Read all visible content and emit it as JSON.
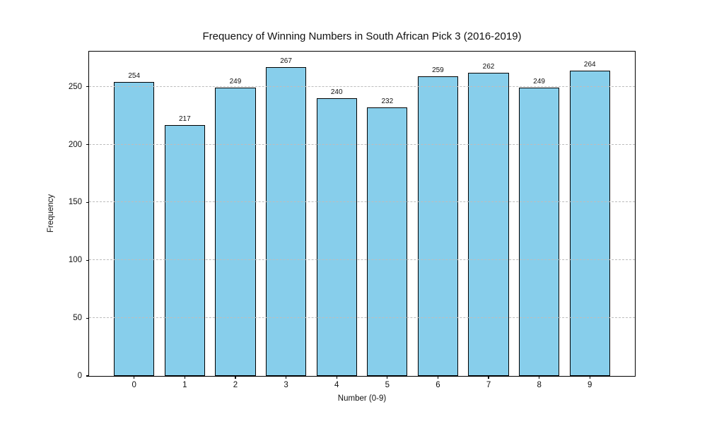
{
  "chart_data": {
    "type": "bar",
    "title": "Frequency of Winning Numbers in South African Pick 3 (2016-2019)",
    "xlabel": "Number (0-9)",
    "ylabel": "Frequency",
    "categories": [
      "0",
      "1",
      "2",
      "3",
      "4",
      "5",
      "6",
      "7",
      "8",
      "9"
    ],
    "values": [
      254,
      217,
      249,
      267,
      240,
      232,
      259,
      262,
      249,
      264
    ],
    "value_labels_shown": true,
    "yticks": [
      0,
      50,
      100,
      150,
      200,
      250
    ],
    "ylim": [
      0,
      280.3
    ],
    "bar_color": "#87CEEB",
    "bar_edge_color": "#000000",
    "grid": "horizontal-dashed",
    "grid_color": "#bdbdbd",
    "background_color": "#ffffff",
    "legend": "none"
  }
}
